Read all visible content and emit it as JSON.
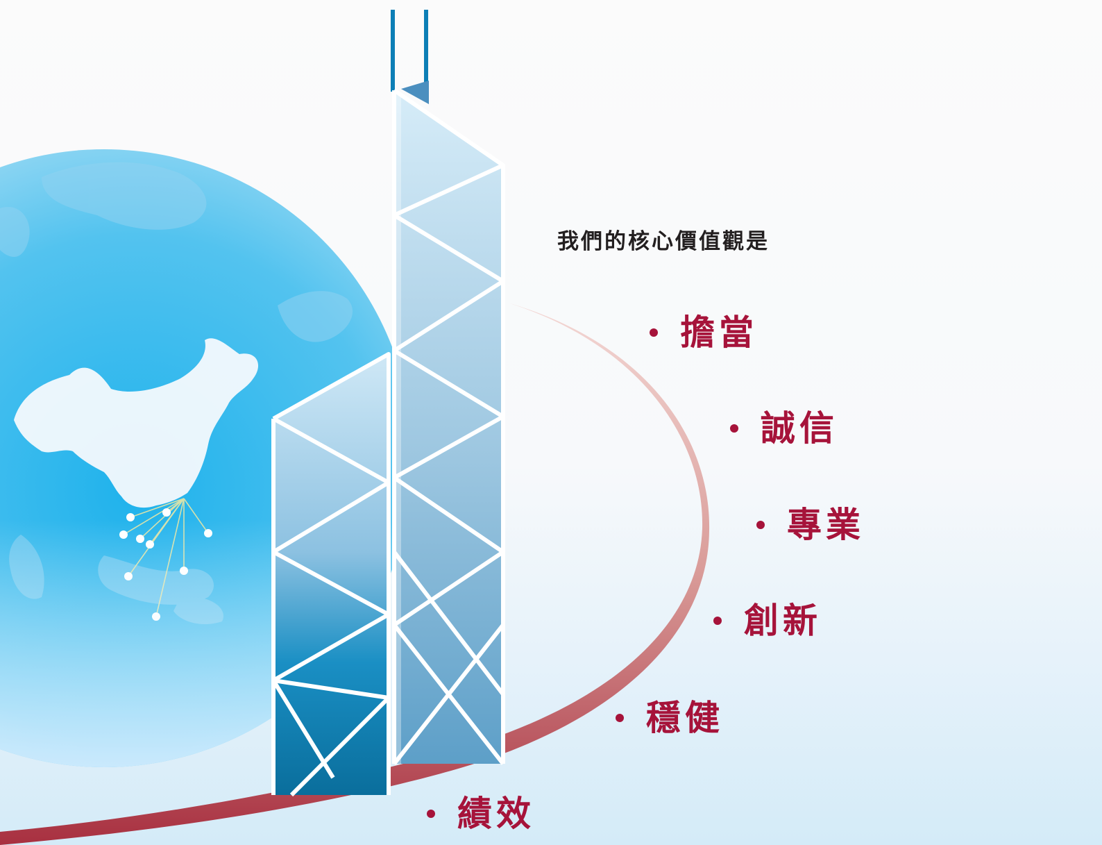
{
  "heading": "我們的核心價值觀是",
  "values": [
    {
      "label": "擔當"
    },
    {
      "label": "誠信"
    },
    {
      "label": "專業"
    },
    {
      "label": "創新"
    },
    {
      "label": "穩健"
    },
    {
      "label": "績效"
    }
  ],
  "colors": {
    "accent": "#a6133a",
    "heading": "#231f20",
    "globe": "#3cb8e8",
    "tower": "#9fcbe4"
  }
}
